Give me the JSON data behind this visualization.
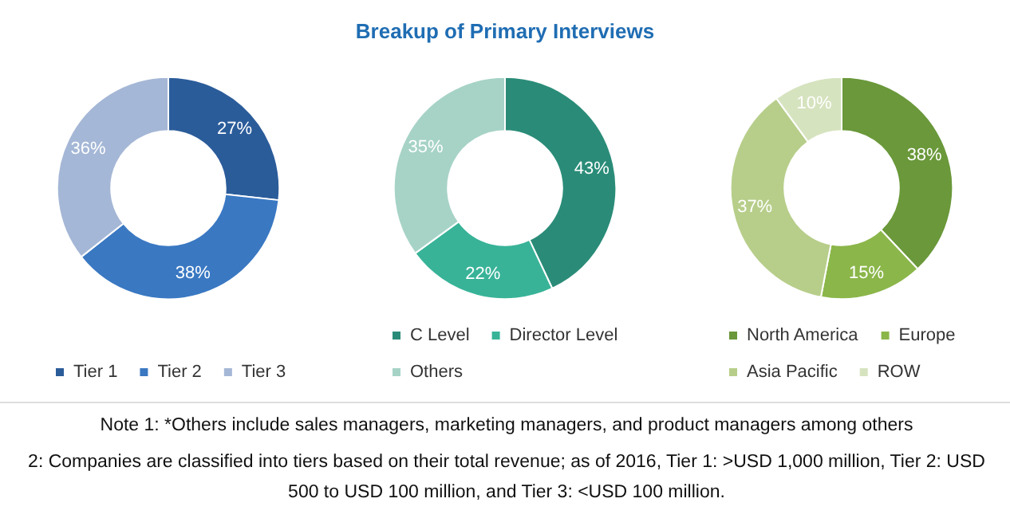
{
  "chart_data": [
    {
      "type": "donut",
      "categories": [
        "Tier 1",
        "Tier 2",
        "Tier 3"
      ],
      "values": [
        27,
        38,
        36
      ],
      "value_labels": [
        "27%",
        "38%",
        "36%"
      ],
      "colors": [
        "#2b5c9a",
        "#3a78c2",
        "#a5b7d6"
      ],
      "legend": "bottom"
    },
    {
      "type": "donut",
      "title": "Breakup of Primary Interviews",
      "categories": [
        "C Level",
        "Director Level",
        "Others"
      ],
      "values": [
        43,
        22,
        35
      ],
      "value_labels": [
        "43%",
        "22%",
        "35%"
      ],
      "colors": [
        "#2a8c78",
        "#38b398",
        "#a7d3c7"
      ],
      "legend": "bottom"
    },
    {
      "type": "donut",
      "categories": [
        "North America",
        "Europe",
        "Asia Pacific",
        "ROW"
      ],
      "values": [
        38,
        15,
        37,
        10
      ],
      "value_labels": [
        "38%",
        "15%",
        "37%",
        "10%"
      ],
      "colors": [
        "#6a983a",
        "#8bb64a",
        "#b7ce8a",
        "#d6e3bf"
      ],
      "legend": "bottom",
      "annotations": [
        "Note 1: *Others include sales managers, marketing managers, and product managers among others",
        "2: Companies are classified into tiers based on their total revenue; as of 2016, Tier 1: >USD 1,000 million, Tier 2: USD 500 to USD 100 million, and Tier 3: <USD 100 million."
      ]
    }
  ]
}
